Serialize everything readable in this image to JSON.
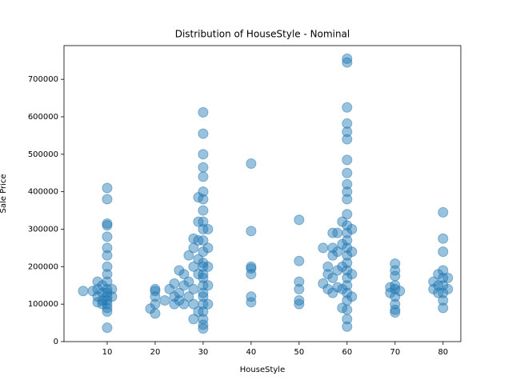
{
  "chart_data": {
    "type": "scatter",
    "title": "Distribution of HouseStyle - Nominal",
    "x_label": "HouseStyle",
    "y_label": "Sale Price",
    "color": "#1f77b4",
    "xlim": [
      1,
      83.7
    ],
    "ylim": [
      0,
      790000
    ],
    "xticks": [
      10,
      20,
      30,
      40,
      50,
      60,
      70,
      80
    ],
    "yticks": [
      0,
      100000,
      200000,
      300000,
      400000,
      500000,
      600000,
      700000
    ],
    "x": [
      5,
      7,
      8,
      8,
      8,
      8,
      9,
      9,
      9,
      9,
      10,
      10,
      10,
      10,
      10,
      10,
      10,
      10,
      10,
      10,
      10,
      10,
      10,
      10,
      10,
      10,
      10,
      10,
      11,
      11,
      19,
      20,
      20,
      20,
      20,
      20,
      22,
      23,
      24,
      24,
      24,
      25,
      25,
      25,
      26,
      26,
      26,
      27,
      27,
      27,
      28,
      28,
      28,
      28,
      28,
      28,
      29,
      29,
      29,
      29,
      29,
      29,
      30,
      30,
      30,
      30,
      30,
      30,
      30,
      30,
      30,
      30,
      30,
      30,
      30,
      30,
      30,
      30,
      30,
      30,
      30,
      30,
      30,
      30,
      30,
      30,
      31,
      31,
      31,
      31,
      31,
      40,
      40,
      40,
      40,
      40,
      40,
      40,
      50,
      50,
      50,
      50,
      50,
      50,
      55,
      55,
      56,
      56,
      56,
      57,
      57,
      57,
      57,
      57,
      58,
      58,
      58,
      58,
      59,
      59,
      59,
      59,
      59,
      60,
      60,
      60,
      60,
      60,
      60,
      60,
      60,
      60,
      60,
      60,
      60,
      60,
      60,
      60,
      60,
      60,
      60,
      60,
      60,
      60,
      60,
      60,
      60,
      60,
      60,
      61,
      61,
      61,
      61,
      69,
      69,
      70,
      70,
      70,
      70,
      70,
      70,
      70,
      70,
      70,
      71,
      78,
      78,
      79,
      79,
      79,
      80,
      80,
      80,
      80,
      80,
      80,
      80,
      80,
      80,
      81,
      81
    ],
    "values": [
      135000,
      135000,
      105000,
      120000,
      160000,
      140000,
      110000,
      130000,
      150000,
      100000,
      37000,
      80000,
      100000,
      120000,
      140000,
      160000,
      180000,
      200000,
      230000,
      250000,
      280000,
      310000,
      315000,
      380000,
      410000,
      130000,
      110000,
      90000,
      120000,
      140000,
      88000,
      75000,
      100000,
      120000,
      135000,
      140000,
      110000,
      140000,
      100000,
      120000,
      155000,
      110000,
      130000,
      190000,
      100000,
      150000,
      180000,
      120000,
      230000,
      160000,
      60000,
      100000,
      200000,
      250000,
      275000,
      140000,
      80000,
      180000,
      270000,
      320000,
      385000,
      220000,
      35000,
      45000,
      60000,
      80000,
      100000,
      130000,
      150000,
      180000,
      210000,
      240000,
      270000,
      300000,
      320000,
      350000,
      380000,
      400000,
      440000,
      465000,
      500000,
      555000,
      612000,
      200000,
      170000,
      120000,
      100000,
      150000,
      200000,
      250000,
      300000,
      105000,
      120000,
      180000,
      195000,
      200000,
      295000,
      475000,
      100000,
      110000,
      140000,
      160000,
      215000,
      325000,
      155000,
      250000,
      140000,
      180000,
      200000,
      130000,
      170000,
      230000,
      250000,
      290000,
      145000,
      190000,
      240000,
      290000,
      90000,
      140000,
      200000,
      260000,
      320000,
      40000,
      60000,
      85000,
      110000,
      130000,
      150000,
      170000,
      190000,
      210000,
      230000,
      250000,
      270000,
      290000,
      310000,
      340000,
      380000,
      400000,
      420000,
      450000,
      485000,
      540000,
      560000,
      582000,
      625000,
      745000,
      755000,
      120000,
      180000,
      240000,
      300000,
      130000,
      145000,
      78000,
      85000,
      100000,
      120000,
      140000,
      150000,
      175000,
      190000,
      208000,
      135000,
      140000,
      160000,
      130000,
      150000,
      180000,
      90000,
      110000,
      130000,
      150000,
      170000,
      190000,
      240000,
      275000,
      345000,
      140000,
      170000
    ]
  }
}
